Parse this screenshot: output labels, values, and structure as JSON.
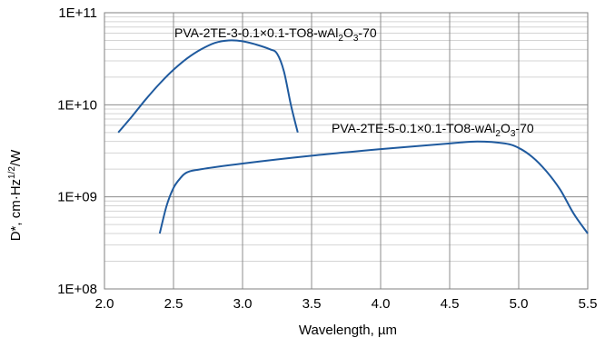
{
  "chart_data": {
    "type": "line",
    "title": "",
    "xlabel": "Wavelength, µm",
    "ylabel": {
      "prefix": "D*, cm·Hz",
      "sup": "1/2",
      "suffix": "/W"
    },
    "xlim": [
      2.0,
      5.5
    ],
    "ylim": [
      100000000.0,
      100000000000.0
    ],
    "yscale": "log",
    "grid": true,
    "x_ticks": [
      "2.0",
      "2.5",
      "3.0",
      "3.5",
      "4.0",
      "4.5",
      "5.0",
      "5.5"
    ],
    "y_ticks": [
      "1E+08",
      "1E+09",
      "1E+10",
      "1E+11"
    ],
    "line_color": "#1f5a9e",
    "series": [
      {
        "name": "PVA-2TE-3-0.1×0.1-TO8-wAl2O3-70",
        "label": {
          "a": "PVA-2TE-3-0.1×0.1-TO8-wAl",
          "s1": "2",
          "b": "O",
          "s2": "3",
          "c": "-70"
        },
        "x": [
          2.1,
          2.2,
          2.3,
          2.4,
          2.5,
          2.6,
          2.7,
          2.8,
          2.9,
          3.0,
          3.1,
          3.2,
          3.25,
          3.3,
          3.35,
          3.4
        ],
        "y": [
          5000000000.0,
          7500000000.0,
          11500000000.0,
          17000000000.0,
          24000000000.0,
          32000000000.0,
          40000000000.0,
          47000000000.0,
          50000000000.0,
          49000000000.0,
          45000000000.0,
          40000000000.0,
          36000000000.0,
          23000000000.0,
          10000000000.0,
          5000000000.0
        ]
      },
      {
        "name": "PVA-2TE-5-0.1×0.1-TO8-wAl2O3-70",
        "label": {
          "a": "PVA-2TE-5-0.1×0.1-TO8-wAl",
          "s1": "2",
          "b": "O",
          "s2": "3",
          "c": "-70"
        },
        "x": [
          2.4,
          2.45,
          2.5,
          2.55,
          2.6,
          2.7,
          3.0,
          3.5,
          4.0,
          4.5,
          4.7,
          4.9,
          5.0,
          5.1,
          5.2,
          5.3,
          5.4,
          5.5
        ],
        "y": [
          400000000.0,
          800000000.0,
          1250000000.0,
          1600000000.0,
          1850000000.0,
          2000000000.0,
          2300000000.0,
          2800000000.0,
          3300000000.0,
          3800000000.0,
          4000000000.0,
          3800000000.0,
          3400000000.0,
          2700000000.0,
          1900000000.0,
          1200000000.0,
          650000000.0,
          400000000.0
        ]
      }
    ]
  }
}
